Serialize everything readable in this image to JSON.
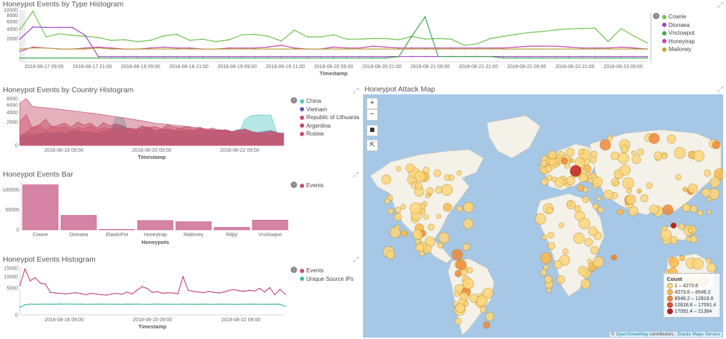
{
  "panels": {
    "type_hist": {
      "title": "Honeypot Events by Type Histogram",
      "legend": [
        {
          "label": "Cowrie",
          "color": "#6cc24a"
        },
        {
          "label": "Dionaea",
          "color": "#9b3fc6"
        },
        {
          "label": "Vnclowpot",
          "color": "#3aa84a"
        },
        {
          "label": "Honeytrap",
          "color": "#c044a8"
        },
        {
          "label": "Mailoney",
          "color": "#b8a23a"
        }
      ]
    },
    "country_hist": {
      "title": "Honeypot Events by Country Histogram",
      "legend": [
        {
          "label": "China",
          "color": "#5bc9c3"
        },
        {
          "label": "Vietnam",
          "color": "#5b5fa8"
        },
        {
          "label": "Republic of Lithuania",
          "color": "#c0506b"
        },
        {
          "label": "Argentina",
          "color": "#c04a60"
        },
        {
          "label": "Russia",
          "color": "#d0506a"
        }
      ]
    },
    "events_bar": {
      "title": "Honeypot Events Bar",
      "legend": [
        {
          "label": "Events",
          "color": "#c24f7e"
        }
      ]
    },
    "events_hist": {
      "title": "Honeypot Events Histogram",
      "legend": [
        {
          "label": "Events",
          "color": "#c24f7e"
        },
        {
          "label": "Unique Source IPs",
          "color": "#3fbf8f"
        }
      ]
    },
    "attack_map": {
      "title": "Honeypot Attack Map",
      "zoom_in": "+",
      "zoom_out": "−",
      "legend_title": "Count",
      "legend_rows": [
        {
          "label": "1 – 4273.6",
          "color": "#fdd67a"
        },
        {
          "label": "4273.6 – 8546.2",
          "color": "#fbb84a"
        },
        {
          "label": "8546.2 – 12818.8",
          "color": "#f08a3a"
        },
        {
          "label": "12818.8 – 17091.4",
          "color": "#e0502e"
        },
        {
          "label": "17091.4 – 21364",
          "color": "#c0201e"
        }
      ],
      "attrib_prefix": "© ",
      "attrib_osm": "OpenStreetMap",
      "attrib_mid": " contributors , ",
      "attrib_ems": "Elastic Maps Service"
    }
  },
  "chart_data": [
    {
      "type": "line",
      "panel": "type_hist",
      "xlabel": "Timestamp",
      "x_ticks": [
        "2018-08-17 09:00",
        "2018-08-17 21:00",
        "2018-08-18 09:00",
        "2018-08-18 21:00",
        "2018-08-19 09:00",
        "2018-08-19 21:00",
        "2018-08-20 09:00",
        "2018-08-20 21:00",
        "2018-08-21 09:00",
        "2018-08-21 21:00",
        "2018-08-22 09:00",
        "2018-08-22 21:00",
        "2018-08-23 09:00"
      ],
      "y_ticks": [
        2000,
        4000,
        6000,
        8000,
        10000
      ],
      "ylim": [
        0,
        10000
      ],
      "series": [
        {
          "name": "Cowrie",
          "values": [
            3800,
            9500,
            2300,
            2900,
            2600,
            2400,
            2200,
            1700,
            1800,
            1500,
            1700,
            2500,
            2800,
            1700,
            1900,
            1500,
            1800,
            2700,
            2800,
            2400,
            1600,
            3700,
            2300,
            2300,
            2700,
            1900,
            1900,
            2000,
            2000,
            1800,
            2400,
            1900,
            2000,
            1900,
            1000,
            1200,
            2000,
            2400,
            2800,
            3200,
            3400,
            3800,
            4000,
            4100,
            4200,
            1500,
            4100,
            2400,
            1300
          ]
        },
        {
          "name": "Dionaea",
          "values": [
            1900,
            4500,
            4400,
            4400,
            4400,
            2600,
            100,
            100,
            100,
            100,
            100,
            100,
            100,
            100,
            100,
            100,
            100,
            100,
            100,
            100,
            100,
            100,
            100,
            100,
            100,
            100,
            100,
            100,
            100,
            100,
            100,
            100,
            100,
            100,
            100,
            100,
            100,
            100,
            100,
            100,
            100,
            100,
            100,
            100,
            100,
            100,
            100,
            100,
            100
          ]
        },
        {
          "name": "Vnclowpot",
          "values": [
            50,
            50,
            50,
            50,
            50,
            50,
            50,
            50,
            50,
            50,
            50,
            50,
            50,
            50,
            50,
            50,
            50,
            50,
            50,
            50,
            50,
            50,
            50,
            50,
            50,
            50,
            50,
            50,
            50,
            100,
            2500,
            7500,
            100,
            100,
            100,
            100,
            100,
            50,
            50,
            50,
            50,
            50,
            50,
            50,
            50,
            50,
            50,
            50,
            50
          ]
        },
        {
          "name": "Honeytrap",
          "values": [
            400,
            800,
            700,
            600,
            600,
            700,
            800,
            700,
            600,
            600,
            700,
            800,
            700,
            700,
            600,
            600,
            700,
            700,
            700,
            800,
            1000,
            700,
            600,
            600,
            800,
            700,
            700,
            900,
            800,
            700,
            700,
            700,
            700,
            700,
            700,
            700,
            700,
            700,
            800,
            900,
            900,
            900,
            800,
            700,
            700,
            700,
            800,
            700,
            600
          ]
        },
        {
          "name": "Mailoney",
          "values": [
            600,
            700,
            700,
            600,
            600,
            600,
            700,
            600,
            600,
            600,
            600,
            600,
            600,
            600,
            600,
            600,
            600,
            600,
            600,
            600,
            600,
            600,
            600,
            600,
            600,
            600,
            600,
            600,
            600,
            600,
            600,
            600,
            600,
            600,
            600,
            600,
            600,
            600,
            600,
            600,
            600,
            600,
            600,
            600,
            600,
            600,
            600,
            600,
            600
          ]
        }
      ]
    },
    {
      "type": "area",
      "panel": "country_hist",
      "xlabel": "Timestamp",
      "x_ticks": [
        "2018-08-18 09:00",
        "2018-08-20 09:00",
        "2018-08-22 09:00"
      ],
      "y_ticks": [
        0,
        2000,
        4000,
        6000,
        8000
      ],
      "ylim": [
        0,
        8000
      ],
      "series": [
        {
          "name": "China",
          "values": [
            300,
            600,
            500,
            400,
            700,
            600,
            500,
            400,
            800,
            700,
            500,
            600,
            400,
            500,
            700,
            3000,
            2800,
            400,
            500,
            600,
            700,
            500,
            400,
            600,
            700,
            800,
            600,
            500,
            400,
            600,
            700,
            800,
            700,
            600,
            500,
            2500,
            3200,
            3400,
            3300,
            3400,
            500,
            600
          ]
        },
        {
          "name": "Vietnam",
          "values": [
            200,
            400,
            300,
            500,
            600,
            400,
            700,
            500,
            600,
            800,
            700,
            600,
            500,
            700,
            800,
            1500,
            1400,
            900,
            800,
            1200,
            1100,
            800,
            900,
            1000,
            800,
            700,
            900,
            800,
            1000,
            800,
            700,
            900,
            800,
            700,
            900,
            800,
            700,
            600,
            700,
            800,
            600,
            500
          ]
        },
        {
          "name": "Republic of Lithuania",
          "values": [
            6500,
            8000,
            5500,
            5300,
            5200,
            5000,
            4800,
            4600,
            4400,
            4200,
            4000,
            3800,
            3600,
            3400,
            3200,
            3000,
            2800,
            2600,
            2400,
            2200,
            2000,
            1800,
            1700,
            1600,
            1500,
            1400,
            1300,
            1200,
            1100,
            1000,
            900,
            800,
            700,
            600,
            500,
            500,
            500,
            500,
            400,
            400,
            400,
            400
          ]
        },
        {
          "name": "Argentina",
          "values": [
            300,
            600,
            1200,
            1500,
            2500,
            1200,
            1500,
            1800,
            1200,
            2000,
            1500,
            1800,
            1100,
            1900,
            1400,
            1700,
            1200,
            1000,
            900,
            1400,
            1100,
            1300,
            1000,
            1500,
            1200,
            1100,
            1300,
            1000,
            1200,
            900,
            1100,
            800,
            900,
            700,
            800,
            1000,
            700,
            600,
            500,
            700,
            600,
            500
          ]
        },
        {
          "name": "Russia",
          "values": [
            2000,
            3500,
            1000,
            1500,
            800,
            1400,
            1100,
            1300,
            900,
            1200,
            1000,
            1400,
            900,
            1100,
            1000,
            900,
            800,
            1100,
            1000,
            900,
            1300,
            800,
            900,
            1000,
            800,
            1100,
            900,
            700,
            1000,
            800,
            900,
            700,
            800,
            600,
            700,
            900,
            600,
            500,
            600,
            700,
            500,
            400
          ]
        }
      ]
    },
    {
      "type": "bar",
      "panel": "events_bar",
      "xlabel": "Honeypots",
      "categories": [
        "Cowrie",
        "Dionaea",
        "ElasticPot",
        "Honeytrap",
        "Mailoney",
        "Rdpy",
        "Vnclowpot"
      ],
      "values": [
        112000,
        36000,
        1000,
        23000,
        20000,
        6000,
        24000
      ],
      "y_ticks": [
        0,
        50000,
        100000
      ],
      "ylim": [
        0,
        120000
      ],
      "series_name": "Events"
    },
    {
      "type": "line",
      "panel": "events_hist",
      "xlabel": "Timestamp",
      "x_ticks": [
        "2018-08-18 09:00",
        "2018-08-20 09:00",
        "2018-08-22 09:00"
      ],
      "y_ticks": [
        0,
        5000,
        10000,
        15000
      ],
      "ylim": [
        0,
        16000
      ],
      "series": [
        {
          "name": "Events",
          "values": [
            6000,
            14500,
            8000,
            9500,
            7000,
            6500,
            3500,
            3300,
            3200,
            3000,
            3200,
            3400,
            3100,
            2800,
            3200,
            3000,
            2800,
            2700,
            3000,
            3200,
            2900,
            3600,
            3000,
            4200,
            5500,
            4800,
            3500,
            3700,
            3200,
            3400,
            3300,
            3100,
            10000,
            4200,
            3800,
            3600,
            3400,
            3800,
            3500,
            3300,
            3600,
            4100,
            4400,
            4000,
            3800,
            4200,
            3900,
            4800,
            3600,
            5100,
            2800,
            4500,
            3000
          ]
        },
        {
          "name": "Unique Source IPs",
          "values": [
            400,
            700,
            800,
            750,
            800,
            780,
            800,
            780,
            820,
            800,
            800,
            780,
            800,
            760,
            780,
            800,
            790,
            770,
            800,
            780,
            760,
            790,
            780,
            800,
            770,
            760,
            780,
            800,
            790,
            760,
            780,
            770,
            800,
            780,
            760,
            780,
            790,
            770,
            760,
            780,
            800,
            780,
            760,
            770,
            780,
            790,
            780,
            770,
            760,
            780,
            790,
            780,
            500
          ]
        }
      ]
    }
  ]
}
